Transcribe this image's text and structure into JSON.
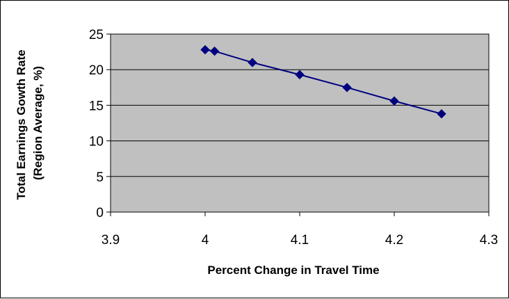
{
  "chart_data": {
    "type": "line",
    "title": "",
    "xlabel": "Percent Change in Travel Time",
    "ylabel_lines": [
      "Total Earnings Gowth Rate",
      "(Region Average, %)"
    ],
    "xlim": [
      3.9,
      4.3
    ],
    "ylim": [
      0,
      25
    ],
    "x_ticks": [
      3.9,
      4.0,
      4.1,
      4.2,
      4.3
    ],
    "x_tick_labels": [
      "3.9",
      "4",
      "4.1",
      "4.2",
      "4.3"
    ],
    "y_ticks": [
      0,
      5,
      10,
      15,
      20,
      25
    ],
    "y_tick_labels": [
      "0",
      "5",
      "10",
      "15",
      "20",
      "25"
    ],
    "grid": "horizontal",
    "legend": "none",
    "colors": {
      "plot_background": "#c0c0c0",
      "series": "#000080",
      "gridline": "#000000"
    },
    "series": [
      {
        "marker": "diamond",
        "x": [
          4.0,
          4.01,
          4.05,
          4.1,
          4.15,
          4.2,
          4.25
        ],
        "y": [
          22.8,
          22.6,
          21.0,
          19.3,
          17.5,
          15.6,
          13.8
        ]
      }
    ]
  }
}
